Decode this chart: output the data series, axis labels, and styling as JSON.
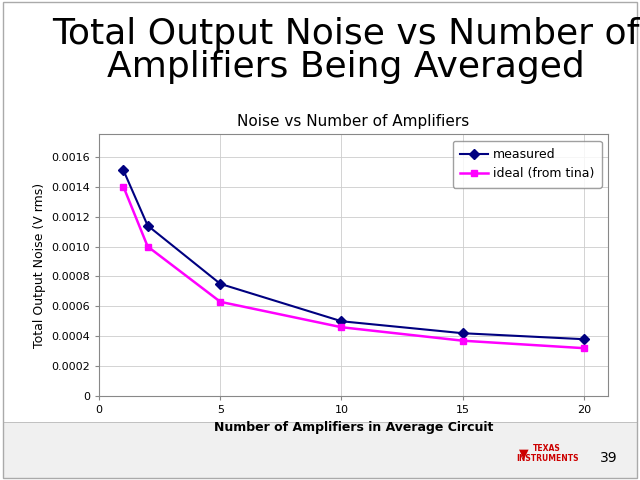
{
  "chart_title": "Noise vs Number of Amplifiers",
  "xlabel": "Number of Amplifiers in Average Circuit",
  "ylabel": "Total Output Noise (V rms)",
  "measured_x": [
    1,
    2,
    5,
    10,
    15,
    20
  ],
  "measured_y": [
    0.00151,
    0.00114,
    0.00075,
    0.0005,
    0.00042,
    0.00038
  ],
  "ideal_x": [
    1,
    2,
    5,
    10,
    15,
    20
  ],
  "ideal_y": [
    0.0014,
    0.001,
    0.00063,
    0.00046,
    0.00037,
    0.00032
  ],
  "measured_color": "#000080",
  "ideal_color": "#FF00FF",
  "xlim": [
    0,
    21
  ],
  "ylim": [
    0,
    0.00175
  ],
  "yticks": [
    0,
    0.0002,
    0.0004,
    0.0006,
    0.0008,
    0.001,
    0.0012,
    0.0014,
    0.0016
  ],
  "xticks": [
    0,
    5,
    10,
    15,
    20
  ],
  "legend_measured": "measured",
  "legend_ideal": "ideal (from tina)",
  "title_line1": "Total Output Noise vs Number of",
  "title_line2": "Amplifiers Being Averaged",
  "slide_number": "39",
  "title_fontsize": 26,
  "chart_title_fontsize": 11,
  "axis_label_fontsize": 9,
  "tick_fontsize": 8,
  "legend_fontsize": 9
}
